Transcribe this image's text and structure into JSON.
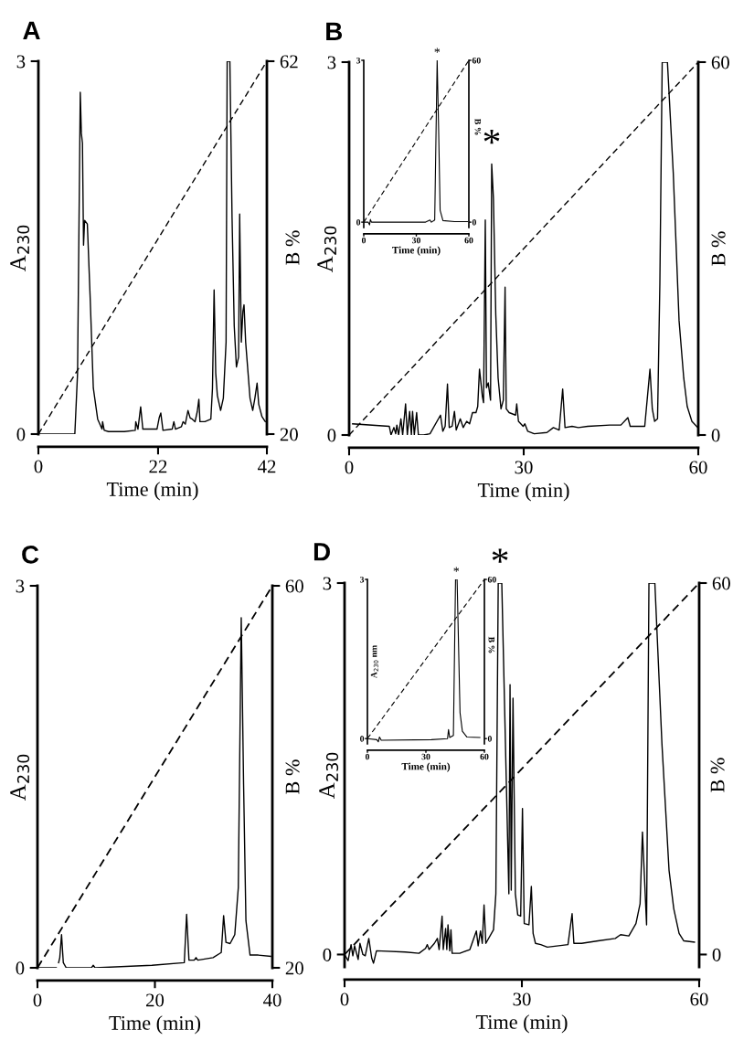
{
  "chart_data": [
    {
      "type": "line",
      "title": "A",
      "xlabel": "Time (min)",
      "ylabel": "A$_{230}$",
      "y2label": "B %",
      "xlim": [
        0,
        42
      ],
      "xticks": [
        0,
        22,
        42
      ],
      "ylim": [
        0,
        3
      ],
      "yticks": [
        0,
        3
      ],
      "y2lim": [
        20,
        62
      ],
      "y2ticks": [
        20,
        62
      ],
      "grid": false,
      "legend": false,
      "series": [
        {
          "color": "#000000",
          "line_style": "solid",
          "x": [
            0,
            6.7,
            7.2,
            7.7,
            7.9,
            8.1,
            8.3,
            8.5,
            9.0,
            9.5,
            10.1,
            10.9,
            11.7,
            11.8,
            12.1,
            12.9,
            15.8,
            17.8,
            17.9,
            18.3,
            18.8,
            19.2,
            21.8,
            22.2,
            22.5,
            22.9,
            24.6,
            24.9,
            25.2,
            26.3,
            26.6,
            27.0,
            27.5,
            27.9,
            28.3,
            28.8,
            29.2,
            29.5,
            29.7,
            30.6,
            31.7,
            32.0,
            32.3,
            32.6,
            32.9,
            33.5,
            34.0,
            34.5,
            34.7,
            35.2,
            35.6,
            36.0,
            36.4,
            36.8,
            37.0,
            37.3,
            37.6,
            37.8,
            38.1,
            38.9,
            39.4,
            39.8,
            40.2,
            40.5,
            41.1,
            41.7
          ],
          "values": [
            0,
            0,
            0.49,
            2.75,
            2.42,
            2.34,
            1.52,
            1.72,
            1.69,
            1.12,
            0.37,
            0.12,
            0.04,
            0.1,
            0.03,
            0.02,
            0.02,
            0.03,
            0.1,
            0.04,
            0.22,
            0.04,
            0.04,
            0.13,
            0.17,
            0.03,
            0.04,
            0.1,
            0.04,
            0.06,
            0.1,
            0.08,
            0.19,
            0.13,
            0.12,
            0.1,
            0.18,
            0.28,
            0.1,
            0.1,
            0.12,
            0.37,
            1.16,
            0.49,
            0.31,
            0.19,
            0.29,
            0.74,
            3.0,
            3.0,
            1.74,
            0.87,
            0.54,
            0.62,
            1.77,
            0.74,
            0.99,
            1.04,
            0.74,
            0.29,
            0.19,
            0.29,
            0.41,
            0.24,
            0.14,
            0.1
          ]
        },
        {
          "color": "#000000",
          "line_style": "dashed",
          "axis": "y2",
          "x": [
            0,
            42
          ],
          "values": [
            20,
            62
          ]
        }
      ]
    },
    {
      "type": "line",
      "title": "B",
      "xlabel": "Time (min)",
      "ylabel": "A$_{230}$",
      "y2label": "B %",
      "xlim": [
        0,
        60
      ],
      "xticks": [
        0,
        30,
        60
      ],
      "ylim": [
        0,
        3
      ],
      "yticks": [
        0,
        3
      ],
      "y2lim": [
        0,
        60
      ],
      "y2ticks": [
        0,
        60
      ],
      "grid": false,
      "legend": false,
      "annotations": [
        {
          "text": "*",
          "x": 24.5,
          "y": 2.18
        }
      ],
      "series": [
        {
          "color": "#000000",
          "line_style": "solid",
          "x": [
            0.6,
            6.9,
            7.2,
            7.7,
            8.0,
            8.2,
            8.5,
            8.9,
            9.2,
            9.7,
            10.0,
            10.4,
            10.7,
            10.9,
            11.2,
            11.6,
            11.9,
            12.8,
            13.9,
            15.7,
            16.1,
            16.5,
            16.9,
            17.2,
            17.7,
            18.1,
            18.4,
            19.1,
            19.6,
            20.2,
            20.7,
            21.2,
            21.8,
            22.1,
            22.4,
            22.9,
            23.1,
            23.4,
            23.6,
            23.9,
            24.3,
            24.5,
            24.8,
            25.2,
            25.6,
            26.1,
            26.5,
            26.8,
            27.0,
            27.5,
            28.6,
            28.8,
            29.1,
            29.9,
            30.2,
            30.7,
            31.8,
            34.0,
            35.1,
            36.1,
            36.7,
            37.1,
            38.3,
            39.4,
            41.0,
            44.8,
            46.7,
            47.9,
            48.3,
            50.8,
            51.7,
            52.1,
            52.5,
            53.0,
            53.4,
            53.8,
            54.7,
            55.7,
            56.7,
            57.5,
            58.1,
            58.9,
            59.9
          ],
          "values": [
            0.09,
            0.07,
            0,
            0.06,
            0.01,
            0.08,
            0,
            0.13,
            0,
            0.25,
            0,
            0.19,
            0,
            0.19,
            0,
            0.18,
            0,
            0,
            0.01,
            0.16,
            0.03,
            0.07,
            0.41,
            0.06,
            0.07,
            0.19,
            0.04,
            0.13,
            0.06,
            0.11,
            0.09,
            0.18,
            0.18,
            0.23,
            0.53,
            0.31,
            0.26,
            1.73,
            0.38,
            0.42,
            0.28,
            2.18,
            1.9,
            0.97,
            0.46,
            0.21,
            0.28,
            1.19,
            0.21,
            0.18,
            0.16,
            0.25,
            0.11,
            0.07,
            0.09,
            0.03,
            0.01,
            0.02,
            0.06,
            0.04,
            0.37,
            0.06,
            0.07,
            0.06,
            0.07,
            0.08,
            0.08,
            0.14,
            0.07,
            0.07,
            0.53,
            0.21,
            0.11,
            0.13,
            1.22,
            3.0,
            3.0,
            2.11,
            0.92,
            0.46,
            0.23,
            0.11,
            0.06
          ]
        },
        {
          "color": "#000000",
          "line_style": "dashed",
          "axis": "y2",
          "x": [
            0,
            60
          ],
          "values": [
            0,
            60
          ]
        }
      ]
    },
    {
      "type": "line",
      "xlabel": "Time (min)",
      "y2label": "B %",
      "xlim": [
        0,
        60
      ],
      "xticks": [
        0,
        30,
        60
      ],
      "ylim": [
        -0.1,
        3
      ],
      "yticks": [
        0,
        3
      ],
      "y2lim": [
        -2,
        60
      ],
      "y2ticks": [
        0,
        60
      ],
      "grid": false,
      "legend": false,
      "annotations": [
        {
          "text": "*",
          "x": 41.9,
          "y": 3.0
        }
      ],
      "series": [
        {
          "color": "#000000",
          "line_style": "solid",
          "x": [
            0,
            2.5,
            3.3,
            3.8,
            4.4,
            18.9,
            35.3,
            37.8,
            38.6,
            40.5,
            41.9,
            42.7,
            43.6,
            45.2,
            51.8,
            59.2
          ],
          "values": [
            0,
            0,
            -0.05,
            0.05,
            0,
            0,
            0,
            0.04,
            0,
            0.04,
            3.0,
            1.79,
            0.22,
            0.03,
            0.01,
            0.01
          ]
        },
        {
          "color": "#000000",
          "line_style": "dashed",
          "axis": "y2",
          "x": [
            0,
            60
          ],
          "values": [
            0,
            60
          ]
        }
      ]
    },
    {
      "type": "line",
      "title": "C",
      "xlabel": "Time (min)",
      "ylabel": "A$_{230}$",
      "y2label": "B %",
      "xlim": [
        0,
        40
      ],
      "xticks": [
        0,
        20,
        40
      ],
      "ylim": [
        0,
        3
      ],
      "yticks": [
        0,
        3
      ],
      "y2lim": [
        20,
        60
      ],
      "y2ticks": [
        20,
        60
      ],
      "grid": false,
      "legend": false,
      "series": [
        {
          "color": "#000000",
          "line_style": "solid",
          "x": [
            0,
            3.2,
            3.4,
            3.6,
            3.8,
            4.1,
            4.4,
            4.9,
            9.2,
            9.5,
            9.8,
            19.5,
            25.0,
            25.4,
            25.8,
            26.7,
            27.0,
            27.3,
            29.9,
            31.3,
            31.7,
            32.1,
            32.8,
            33.6,
            34.2,
            34.7,
            35.1,
            35.5,
            36.2,
            37.6,
            39.7
          ],
          "values": [
            0,
            0,
            null,
            0.04,
            0.08,
            0.26,
            0.04,
            0,
            0,
            0.02,
            0,
            0.02,
            0.04,
            0.42,
            0.06,
            0.06,
            0.08,
            0.06,
            0.08,
            0.12,
            0.41,
            0.2,
            0.19,
            0.26,
            0.63,
            2.75,
            1.44,
            0.37,
            0.1,
            0.1,
            0.09
          ]
        },
        {
          "color": "#000000",
          "line_style": "dashed",
          "axis": "y2",
          "x": [
            0,
            40
          ],
          "values": [
            20,
            60
          ]
        }
      ]
    },
    {
      "type": "line",
      "title": "D",
      "xlabel": "Time (min)",
      "ylabel": "A$_{230}$",
      "y2label": "B %",
      "xlim": [
        0,
        60
      ],
      "xticks": [
        0,
        30,
        60
      ],
      "ylim": [
        -0.1,
        3
      ],
      "yticks": [
        0,
        3
      ],
      "y2lim": [
        -2,
        60
      ],
      "y2ticks": [
        0,
        60
      ],
      "grid": false,
      "legend": false,
      "annotations": [
        {
          "text": "*",
          "x": 26.3,
          "y": 3.0
        }
      ],
      "series": [
        {
          "color": "#000000",
          "line_style": "solid",
          "x": [
            0,
            0.6,
            1.1,
            1.4,
            1.7,
            2.3,
            2.6,
            3.1,
            3.5,
            4.1,
            4.6,
            4.9,
            5.4,
            10.3,
            12.6,
            13.7,
            14.0,
            14.3,
            15.2,
            15.7,
            16.0,
            16.5,
            16.7,
            17.1,
            17.3,
            17.5,
            17.8,
            18.0,
            18.2,
            19.5,
            21.2,
            22.3,
            22.6,
            23.0,
            23.3,
            23.6,
            23.9,
            25.2,
            25.6,
            26.0,
            26.6,
            27.8,
            28.0,
            28.2,
            28.5,
            28.9,
            29.3,
            29.8,
            30.1,
            30.4,
            31.2,
            31.6,
            31.9,
            32.3,
            33.2,
            34.3,
            37.8,
            38.5,
            38.8,
            40.1,
            42.9,
            45.8,
            46.7,
            48.1,
            49.3,
            50.0,
            50.4,
            51.1,
            51.5,
            52.5,
            53.7,
            54.9,
            55.7,
            56.6,
            57.4,
            59.2
          ],
          "values": [
            0,
            -0.05,
            0.08,
            -0.01,
            0.07,
            -0.04,
            0.09,
            0,
            -0.01,
            0.13,
            -0.03,
            -0.07,
            0.03,
            0.02,
            0.01,
            0.05,
            0.08,
            0.04,
            0.09,
            0.13,
            0.04,
            0.31,
            0.04,
            0.21,
            0.04,
            0.24,
            0.03,
            0.2,
            0.01,
            0.01,
            0.04,
            0.19,
            0.07,
            0.19,
            0.09,
            0.4,
            0.09,
            0.2,
            0.49,
            3.0,
            3.0,
            0.49,
            2.18,
            0.52,
            2.07,
            0.49,
            0.32,
            0.31,
            1.18,
            0.25,
            0.24,
            0.55,
            0.17,
            0.09,
            0.08,
            0.06,
            0.08,
            0.33,
            0.09,
            0.09,
            0.11,
            0.13,
            0.16,
            0.15,
            0.25,
            0.41,
            0.99,
            0.24,
            3.0,
            3.0,
            1.7,
            0.68,
            0.37,
            0.17,
            0.11,
            0.1
          ]
        },
        {
          "color": "#000000",
          "line_style": "dashed",
          "axis": "y2",
          "x": [
            0,
            60
          ],
          "values": [
            0,
            60
          ]
        }
      ]
    },
    {
      "type": "line",
      "xlabel": "Time (min)",
      "ylabel": "A$_{230}$ nm",
      "y2label": "B %",
      "xlim": [
        0,
        60
      ],
      "xticks": [
        0,
        30,
        60
      ],
      "ylim": [
        -0.1,
        3
      ],
      "yticks": [
        0,
        3
      ],
      "y2lim": [
        -2,
        60
      ],
      "y2ticks": [
        0,
        60
      ],
      "grid": false,
      "legend": false,
      "annotations": [
        {
          "text": "*",
          "x": 45.6,
          "y": 3.0
        }
      ],
      "series": [
        {
          "color": "#000000",
          "line_style": "solid",
          "x": [
            0,
            4.8,
            5.6,
            6.2,
            7.1,
            32.8,
            41.1,
            41.6,
            42.2,
            44.1,
            45.2,
            46.0,
            47.5,
            48.7,
            51.0,
            57.7
          ],
          "values": [
            0,
            -0.02,
            -0.06,
            0.03,
            -0.03,
            -0.02,
            0,
            0.17,
            0.02,
            0.06,
            3.0,
            3.0,
            0.49,
            0.14,
            0.03,
            0.02
          ]
        },
        {
          "color": "#000000",
          "line_style": "dashed",
          "axis": "y2",
          "x": [
            0,
            60
          ],
          "values": [
            0,
            60
          ]
        }
      ]
    }
  ]
}
